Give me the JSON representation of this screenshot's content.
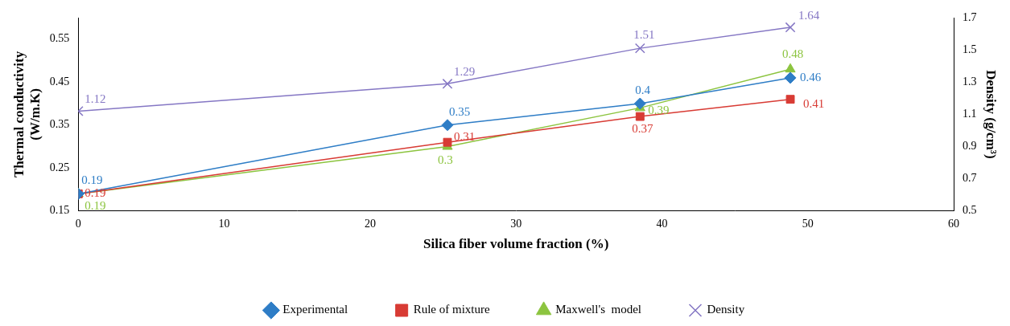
{
  "chart_data": {
    "type": "line",
    "x": [
      0,
      25.3,
      38.5,
      48.8
    ],
    "x_label": "Silica fiber volume fraction (%)",
    "y_label": [
      "Thermal conductivity",
      "(W/m.K)"
    ],
    "y2_label": "Density (g/cm³)",
    "xlim": [
      0,
      60
    ],
    "xticks": [
      0,
      10,
      20,
      30,
      40,
      50,
      60
    ],
    "ylim": [
      0.15,
      0.6
    ],
    "yticks": [
      0.15,
      0.25,
      0.35,
      0.45,
      0.55
    ],
    "y2lim": [
      0.5,
      1.7
    ],
    "y2ticks": [
      0.5,
      0.7,
      0.9,
      1.1,
      1.3,
      1.5,
      1.7
    ],
    "grid": false,
    "legend": "bottom",
    "data_labels": true,
    "series": [
      {
        "name": "Experimental",
        "color": "#2e7dc6",
        "marker": "diamond",
        "values": [
          0.19,
          0.35,
          0.4,
          0.46
        ]
      },
      {
        "name": "Rule of mixture",
        "color": "#d83b34",
        "marker": "square",
        "values": [
          0.19,
          0.31,
          0.37,
          0.41
        ]
      },
      {
        "name": "Maxwell's  model",
        "color": "#8cc43f",
        "marker": "triangle",
        "values": [
          0.19,
          0.3,
          0.39,
          0.48
        ]
      },
      {
        "name": "Density",
        "color": "#8577c4",
        "marker": "x",
        "axis": "y2",
        "values": [
          1.12,
          1.29,
          1.51,
          1.64
        ]
      }
    ]
  }
}
